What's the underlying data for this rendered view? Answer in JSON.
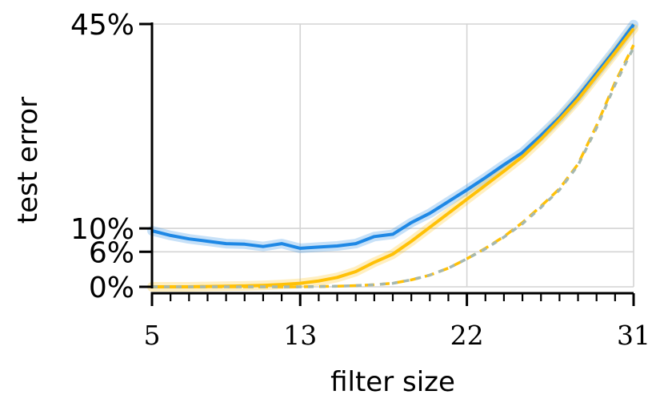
{
  "chart_data": {
    "type": "line",
    "title": "",
    "xlabel": "filter size",
    "ylabel": "test error",
    "xlim": [
      5,
      31
    ],
    "ylim": [
      0,
      45
    ],
    "x_ticks": [
      5,
      13,
      22,
      31
    ],
    "x_tick_labels": [
      "5",
      "13",
      "22",
      "31"
    ],
    "y_ticks": [
      0,
      6,
      10,
      45
    ],
    "y_tick_labels": [
      "0%",
      "6%",
      "10%",
      "45%"
    ],
    "grid": true,
    "legend": "none",
    "x": [
      5,
      6,
      7,
      8,
      9,
      10,
      11,
      12,
      13,
      14,
      15,
      16,
      17,
      18,
      19,
      20,
      21,
      22,
      23,
      24,
      25,
      26,
      27,
      28,
      29,
      30,
      31
    ],
    "series": [
      {
        "color": "#1e88e5",
        "style": "solid",
        "values": [
          9.6,
          8.8,
          8.2,
          7.8,
          7.4,
          7.3,
          6.9,
          7.4,
          6.6,
          6.8,
          7.0,
          7.4,
          8.6,
          9.0,
          11.0,
          12.6,
          14.6,
          16.6,
          18.7,
          20.9,
          23.0,
          25.9,
          29.0,
          32.6,
          36.6,
          40.6,
          44.9
        ]
      },
      {
        "color": "#ffc107",
        "style": "solid",
        "values": [
          0.0,
          0.0,
          0.0,
          0.05,
          0.1,
          0.15,
          0.25,
          0.4,
          0.6,
          1.0,
          1.6,
          2.6,
          4.2,
          5.6,
          7.8,
          10.2,
          12.6,
          15.0,
          17.4,
          19.8,
          22.3,
          25.3,
          28.6,
          32.1,
          36.1,
          40.1,
          44.2
        ]
      },
      {
        "color": "#ffc107",
        "style": "dashed",
        "values": [
          0.0,
          0.0,
          0.0,
          0.0,
          0.0,
          0.0,
          0.0,
          0.0,
          0.0,
          0.05,
          0.1,
          0.2,
          0.35,
          0.6,
          1.2,
          2.0,
          3.2,
          4.8,
          6.6,
          8.6,
          11.0,
          13.8,
          16.8,
          21.0,
          27.6,
          35.0,
          41.4
        ]
      },
      {
        "color": "#a5b8b0",
        "style": "dotted",
        "values": [
          0.0,
          0.0,
          0.0,
          0.0,
          0.0,
          0.0,
          0.0,
          0.0,
          0.0,
          0.05,
          0.1,
          0.2,
          0.35,
          0.6,
          1.2,
          2.0,
          3.2,
          4.8,
          6.5,
          8.5,
          10.8,
          13.6,
          16.6,
          20.8,
          27.2,
          34.6,
          41.0
        ]
      }
    ]
  }
}
